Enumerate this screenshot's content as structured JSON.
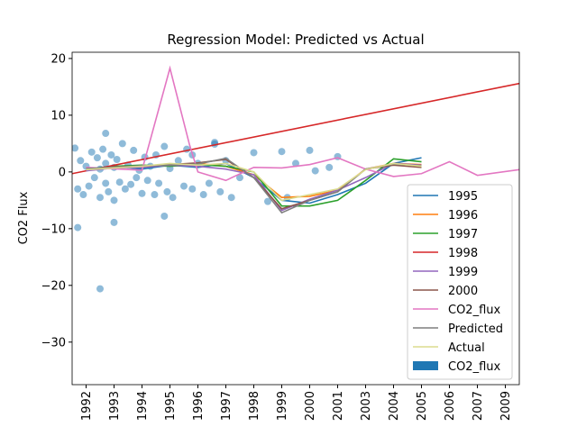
{
  "chart_data": {
    "type": "line",
    "title": "Regression Model: Predicted vs Actual",
    "y_label": "CO2 Flux",
    "xlim": [
      -0.5,
      15.5
    ],
    "ylim": [
      -37.5,
      21.1
    ],
    "xticks": [
      {
        "value": 0,
        "label": "1992"
      },
      {
        "value": 1,
        "label": "1993"
      },
      {
        "value": 2,
        "label": "1994"
      },
      {
        "value": 3,
        "label": "1995"
      },
      {
        "value": 4,
        "label": "1996"
      },
      {
        "value": 5,
        "label": "1997"
      },
      {
        "value": 6,
        "label": "1998"
      },
      {
        "value": 7,
        "label": "1999"
      },
      {
        "value": 8,
        "label": "2000"
      },
      {
        "value": 9,
        "label": "2001"
      },
      {
        "value": 10,
        "label": "2003"
      },
      {
        "value": 11,
        "label": "2004"
      },
      {
        "value": 12,
        "label": "2005"
      },
      {
        "value": 13,
        "label": "2006"
      },
      {
        "value": 14,
        "label": "2007"
      },
      {
        "value": 15,
        "label": "2009"
      }
    ],
    "yticks": [
      {
        "value": 20,
        "label": "20"
      },
      {
        "value": 10,
        "label": "10"
      },
      {
        "value": 0,
        "label": "0"
      },
      {
        "value": -10,
        "label": "−10"
      },
      {
        "value": -20,
        "label": "−20"
      },
      {
        "value": -30,
        "label": "−30"
      }
    ],
    "series": [
      {
        "name": "CO2_flux",
        "kind": "scatter",
        "color": "#1f77b4",
        "x": [
          -0.4,
          -0.3,
          -0.2,
          -0.1,
          0,
          0.1,
          0.2,
          0.3,
          0.4,
          0.5,
          0.5,
          0.6,
          0.7,
          0.7,
          0.8,
          0.9,
          1,
          1,
          1.1,
          1.2,
          1.3,
          1.4,
          1.5,
          1.6,
          1.7,
          1.8,
          1.9,
          2,
          2.1,
          2.2,
          2.3,
          2.45,
          2.5,
          2.6,
          2.8,
          2.9,
          3,
          3.1,
          3.3,
          3.5,
          3.6,
          3.8,
          4,
          4.2,
          4.4,
          4.6,
          4.8,
          5,
          5.2,
          5.5,
          6,
          6.5,
          7,
          7.2,
          7.5,
          8,
          8.2,
          8.7,
          9,
          -0.3,
          0.5,
          1,
          2.8,
          0.7,
          4.6,
          3.8
        ],
        "values": [
          4.2,
          -3,
          2,
          -4,
          1,
          -2.5,
          3.5,
          -1,
          2.5,
          -4.5,
          0.5,
          4,
          -2,
          1.5,
          -3.5,
          3,
          -5,
          0.8,
          2.2,
          -1.8,
          5,
          -3,
          1.2,
          -2.2,
          3.8,
          -1,
          0.3,
          -3.8,
          2.6,
          -1.5,
          1,
          -4,
          3,
          -2,
          4.5,
          -3.5,
          0.6,
          -4.5,
          2,
          -2.5,
          4,
          -3,
          1.5,
          -4,
          -2,
          5.2,
          -3.5,
          2,
          -4.5,
          -1,
          3.4,
          -5.2,
          3.6,
          -4.5,
          1.5,
          3.8,
          0.2,
          0.8,
          2.7,
          -9.8,
          -20.6,
          -8.9,
          -7.8,
          6.8,
          4.9,
          3
        ]
      },
      {
        "name": "1995",
        "kind": "line",
        "color": "#1f77b4",
        "x": [
          0,
          1,
          2,
          3,
          4,
          5,
          6,
          7,
          8,
          9,
          10,
          11,
          12
        ],
        "values": [
          0.5,
          1,
          0.5,
          1.2,
          0.8,
          1.5,
          -1,
          -5,
          -5.5,
          -4,
          -2,
          1.5,
          2.5
        ]
      },
      {
        "name": "1996",
        "kind": "line",
        "color": "#ff7f0e",
        "x": [
          0,
          1,
          2,
          3,
          4,
          5,
          6,
          7,
          8,
          9,
          10,
          11,
          12
        ],
        "values": [
          0.3,
          0.8,
          1,
          1.3,
          1.5,
          1,
          -0.5,
          -4.5,
          -4.3,
          -3.2,
          0.5,
          1.5,
          1.3
        ]
      },
      {
        "name": "1997",
        "kind": "line",
        "color": "#2ca02c",
        "x": [
          0,
          1,
          2,
          3,
          4,
          5,
          6,
          7,
          8,
          9,
          10,
          11,
          12
        ],
        "values": [
          0.5,
          1,
          1.2,
          1,
          1.3,
          1,
          0,
          -6,
          -6,
          -5,
          -1.5,
          2.3,
          1.8
        ]
      },
      {
        "name": "1998",
        "kind": "line",
        "color": "#d62728",
        "x": [
          -0.5,
          15.5
        ],
        "values": [
          -0.3,
          15.6
        ]
      },
      {
        "name": "1999",
        "kind": "line",
        "color": "#9467bd",
        "x": [
          0,
          1,
          2,
          3,
          4,
          5,
          6,
          7,
          8,
          9,
          10,
          11,
          12
        ],
        "values": [
          0.2,
          0.7,
          0.8,
          1.2,
          1,
          0.5,
          -0.5,
          -6.8,
          -4.8,
          -3.2,
          -1,
          1.5,
          1.2
        ]
      },
      {
        "name": "2000",
        "kind": "line",
        "color": "#8c564b",
        "x": [
          0,
          1,
          2,
          3,
          4,
          5,
          6,
          7,
          8,
          9,
          10,
          11,
          12
        ],
        "values": [
          0.4,
          0.9,
          1,
          1.3,
          1.6,
          2.2,
          -1,
          -6.5,
          -5,
          -3.5,
          0.5,
          1.2,
          0.8
        ]
      },
      {
        "name": "CO2_flux",
        "kind": "line",
        "color": "#e377c2",
        "x": [
          0,
          2,
          3,
          3.7,
          4,
          5,
          6,
          7,
          8,
          9,
          10,
          11,
          12,
          13,
          14,
          15.5
        ],
        "values": [
          0.8,
          0.3,
          18.3,
          4.8,
          0,
          -1.5,
          0.8,
          0.7,
          1.3,
          2.5,
          0.5,
          -0.8,
          -0.3,
          1.8,
          -0.6,
          0.4
        ]
      },
      {
        "name": "Predicted",
        "kind": "line",
        "color": "#7f7f7f",
        "x": [
          0,
          1,
          2,
          3,
          4,
          5,
          6,
          7,
          8,
          9,
          10,
          11,
          12
        ],
        "values": [
          0.6,
          0.8,
          1.1,
          1.2,
          1.4,
          2.4,
          -1,
          -7.2,
          -5,
          -3.5,
          0.5,
          1.4,
          1.1
        ]
      },
      {
        "name": "Actual",
        "kind": "line",
        "color": "#dbdb8d",
        "x": [
          0,
          1,
          2,
          3,
          4,
          5,
          6,
          7,
          8,
          9,
          10,
          11,
          12
        ],
        "values": [
          0.4,
          0.7,
          1,
          1.5,
          1.2,
          1.5,
          0,
          -5,
          -4,
          -3,
          0.4,
          1.5,
          1
        ]
      }
    ],
    "legend_order": [
      1,
      2,
      3,
      4,
      5,
      6,
      7,
      8,
      9,
      0
    ]
  }
}
